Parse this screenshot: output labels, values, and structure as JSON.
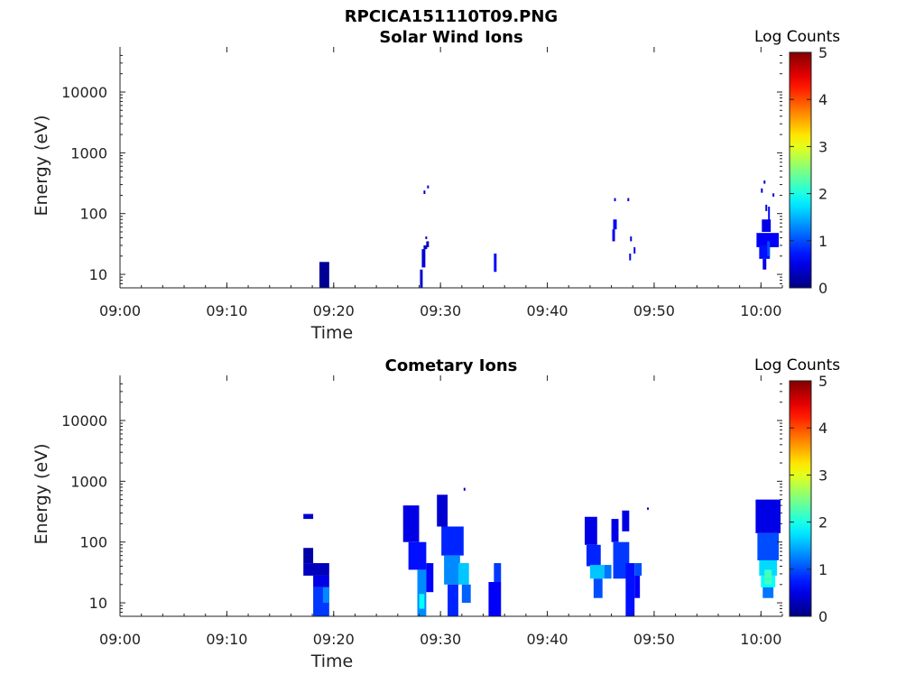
{
  "figure": {
    "title": "RPCICA151110T09.PNG"
  },
  "chart_data": [
    {
      "type": "heatmap",
      "title": "Solar Wind Ions",
      "xlabel": "Time",
      "ylabel": "Energy (eV)",
      "y_scale": "log",
      "ylim": [
        6,
        45000
      ],
      "xlim": [
        "09:00",
        "10:02"
      ],
      "x_ticks": [
        "09:00",
        "09:10",
        "09:20",
        "09:30",
        "09:40",
        "09:50",
        "10:00"
      ],
      "y_ticks": [
        "10",
        "100",
        "1000",
        "10000"
      ],
      "colorbar": {
        "label": "Log Counts",
        "min": 0,
        "max": 5,
        "ticks": [
          "0",
          "1",
          "2",
          "3",
          "4",
          "5"
        ],
        "colormap": "jet"
      },
      "cells": [
        {
          "t0": "09:18:40",
          "t1": "09:19:35",
          "e0": 6,
          "e1": 16,
          "v": 0.1
        },
        {
          "t0": "09:28:05",
          "t1": "09:28:20",
          "e0": 6,
          "e1": 12,
          "v": 0.4
        },
        {
          "t0": "09:28:15",
          "t1": "09:28:35",
          "e0": 13,
          "e1": 26,
          "v": 0.4
        },
        {
          "t0": "09:28:25",
          "t1": "09:28:45",
          "e0": 26,
          "e1": 30,
          "v": 0.4
        },
        {
          "t0": "09:28:40",
          "t1": "09:28:55",
          "e0": 28,
          "e1": 35,
          "v": 0.3
        },
        {
          "t0": "09:28:35",
          "t1": "09:28:45",
          "e0": 38,
          "e1": 42,
          "v": 0.3
        },
        {
          "t0": "09:28:25",
          "t1": "09:28:35",
          "e0": 210,
          "e1": 240,
          "v": 0.4
        },
        {
          "t0": "09:28:45",
          "t1": "09:28:55",
          "e0": 260,
          "e1": 290,
          "v": 0.4
        },
        {
          "t0": "09:35:00",
          "t1": "09:35:15",
          "e0": 11,
          "e1": 22,
          "v": 0.6
        },
        {
          "t0": "09:46:15",
          "t1": "09:46:25",
          "e0": 160,
          "e1": 180,
          "v": 0.4
        },
        {
          "t0": "09:46:10",
          "t1": "09:46:30",
          "e0": 55,
          "e1": 80,
          "v": 0.6
        },
        {
          "t0": "09:46:05",
          "t1": "09:46:20",
          "e0": 35,
          "e1": 55,
          "v": 0.5
        },
        {
          "t0": "09:47:30",
          "t1": "09:47:40",
          "e0": 160,
          "e1": 180,
          "v": 0.4
        },
        {
          "t0": "09:47:45",
          "t1": "09:47:55",
          "e0": 35,
          "e1": 42,
          "v": 0.4
        },
        {
          "t0": "09:47:40",
          "t1": "09:47:50",
          "e0": 17,
          "e1": 22,
          "v": 0.5
        },
        {
          "t0": "09:48:05",
          "t1": "09:48:15",
          "e0": 22,
          "e1": 28,
          "v": 0.5
        },
        {
          "t0": "10:00:15",
          "t1": "10:00:25",
          "e0": 310,
          "e1": 350,
          "v": 0.4
        },
        {
          "t0": "10:00:00",
          "t1": "10:00:10",
          "e0": 220,
          "e1": 260,
          "v": 0.4
        },
        {
          "t0": "10:01:05",
          "t1": "10:01:15",
          "e0": 190,
          "e1": 215,
          "v": 0.4
        },
        {
          "t0": "10:00:25",
          "t1": "10:00:35",
          "e0": 110,
          "e1": 140,
          "v": 0.4
        },
        {
          "t0": "10:00:40",
          "t1": "10:00:50",
          "e0": 75,
          "e1": 130,
          "v": 0.6
        },
        {
          "t0": "10:00:05",
          "t1": "10:00:55",
          "e0": 50,
          "e1": 80,
          "v": 0.5
        },
        {
          "t0": "09:59:35",
          "t1": "10:01:40",
          "e0": 28,
          "e1": 48,
          "v": 0.6
        },
        {
          "t0": "09:59:50",
          "t1": "10:00:50",
          "e0": 18,
          "e1": 30,
          "v": 0.7
        },
        {
          "t0": "10:00:10",
          "t1": "10:00:30",
          "e0": 12,
          "e1": 18,
          "v": 0.5
        },
        {
          "t0": "10:00:35",
          "t1": "10:00:50",
          "e0": 20,
          "e1": 35,
          "v": 1.0
        }
      ]
    },
    {
      "type": "heatmap",
      "title": "Cometary Ions",
      "xlabel": "Time",
      "ylabel": "Energy (eV)",
      "y_scale": "log",
      "ylim": [
        6,
        45000
      ],
      "xlim": [
        "09:00",
        "10:02"
      ],
      "x_ticks": [
        "09:00",
        "09:10",
        "09:20",
        "09:30",
        "09:40",
        "09:50",
        "10:00"
      ],
      "y_ticks": [
        "10",
        "100",
        "1000",
        "10000"
      ],
      "colorbar": {
        "label": "Log Counts",
        "min": 0,
        "max": 5,
        "ticks": [
          "0",
          "1",
          "2",
          "3",
          "4",
          "5"
        ],
        "colormap": "jet"
      },
      "cells": [
        {
          "t0": "09:17:10",
          "t1": "09:18:05",
          "e0": 240,
          "e1": 290,
          "v": 0.4
        },
        {
          "t0": "09:17:10",
          "t1": "09:18:05",
          "e0": 45,
          "e1": 80,
          "v": 0.2
        },
        {
          "t0": "09:17:10",
          "t1": "09:19:35",
          "e0": 28,
          "e1": 45,
          "v": 0.3
        },
        {
          "t0": "09:18:05",
          "t1": "09:19:35",
          "e0": 18,
          "e1": 28,
          "v": 0.5
        },
        {
          "t0": "09:18:05",
          "t1": "09:19:35",
          "e0": 6,
          "e1": 18,
          "v": 0.9
        },
        {
          "t0": "09:19:00",
          "t1": "09:19:35",
          "e0": 10,
          "e1": 18,
          "v": 1.3
        },
        {
          "t0": "09:26:30",
          "t1": "09:28:00",
          "e0": 100,
          "e1": 400,
          "v": 0.5
        },
        {
          "t0": "09:27:00",
          "t1": "09:28:40",
          "e0": 35,
          "e1": 100,
          "v": 0.7
        },
        {
          "t0": "09:27:50",
          "t1": "09:28:40",
          "e0": 6,
          "e1": 35,
          "v": 1.3
        },
        {
          "t0": "09:28:00",
          "t1": "09:28:30",
          "e0": 8,
          "e1": 14,
          "v": 1.9
        },
        {
          "t0": "09:28:40",
          "t1": "09:29:20",
          "e0": 15,
          "e1": 45,
          "v": 0.6
        },
        {
          "t0": "09:29:40",
          "t1": "09:30:40",
          "e0": 180,
          "e1": 600,
          "v": 0.4
        },
        {
          "t0": "09:30:05",
          "t1": "09:32:10",
          "e0": 60,
          "e1": 180,
          "v": 0.8
        },
        {
          "t0": "09:30:20",
          "t1": "09:31:50",
          "e0": 20,
          "e1": 60,
          "v": 1.3
        },
        {
          "t0": "09:30:40",
          "t1": "09:31:40",
          "e0": 6,
          "e1": 20,
          "v": 0.8
        },
        {
          "t0": "09:31:40",
          "t1": "09:32:40",
          "e0": 20,
          "e1": 45,
          "v": 1.6
        },
        {
          "t0": "09:32:00",
          "t1": "09:32:50",
          "e0": 10,
          "e1": 20,
          "v": 1.1
        },
        {
          "t0": "09:32:10",
          "t1": "09:32:20",
          "e0": 700,
          "e1": 780,
          "v": 0.4
        },
        {
          "t0": "09:34:30",
          "t1": "09:35:40",
          "e0": 6,
          "e1": 22,
          "v": 0.6
        },
        {
          "t0": "09:35:00",
          "t1": "09:35:40",
          "e0": 22,
          "e1": 45,
          "v": 0.9
        },
        {
          "t0": "09:43:30",
          "t1": "09:44:40",
          "e0": 90,
          "e1": 260,
          "v": 0.5
        },
        {
          "t0": "09:43:40",
          "t1": "09:45:00",
          "e0": 40,
          "e1": 90,
          "v": 0.8
        },
        {
          "t0": "09:44:00",
          "t1": "09:45:20",
          "e0": 25,
          "e1": 42,
          "v": 1.6
        },
        {
          "t0": "09:44:20",
          "t1": "09:45:10",
          "e0": 12,
          "e1": 25,
          "v": 1.0
        },
        {
          "t0": "09:45:20",
          "t1": "09:46:00",
          "e0": 25,
          "e1": 42,
          "v": 1.2
        },
        {
          "t0": "09:46:00",
          "t1": "09:46:40",
          "e0": 100,
          "e1": 240,
          "v": 0.5
        },
        {
          "t0": "09:46:10",
          "t1": "09:47:40",
          "e0": 25,
          "e1": 100,
          "v": 0.9
        },
        {
          "t0": "09:47:00",
          "t1": "09:47:40",
          "e0": 150,
          "e1": 330,
          "v": 0.5
        },
        {
          "t0": "09:47:20",
          "t1": "09:48:10",
          "e0": 6,
          "e1": 45,
          "v": 0.7
        },
        {
          "t0": "09:48:10",
          "t1": "09:48:50",
          "e0": 28,
          "e1": 45,
          "v": 1.0
        },
        {
          "t0": "09:48:10",
          "t1": "09:48:40",
          "e0": 12,
          "e1": 28,
          "v": 0.6
        },
        {
          "t0": "09:49:20",
          "t1": "09:49:30",
          "e0": 340,
          "e1": 370,
          "v": 0.4
        },
        {
          "t0": "09:59:30",
          "t1": "10:01:50",
          "e0": 140,
          "e1": 500,
          "v": 0.5
        },
        {
          "t0": "09:59:40",
          "t1": "10:01:40",
          "e0": 50,
          "e1": 140,
          "v": 1.0
        },
        {
          "t0": "09:59:50",
          "t1": "10:01:30",
          "e0": 28,
          "e1": 50,
          "v": 1.7
        },
        {
          "t0": "10:00:00",
          "t1": "10:01:20",
          "e0": 18,
          "e1": 28,
          "v": 1.9
        },
        {
          "t0": "10:00:10",
          "t1": "10:01:10",
          "e0": 12,
          "e1": 18,
          "v": 1.2
        },
        {
          "t0": "10:00:20",
          "t1": "10:01:00",
          "e0": 20,
          "e1": 35,
          "v": 2.2
        }
      ]
    }
  ]
}
